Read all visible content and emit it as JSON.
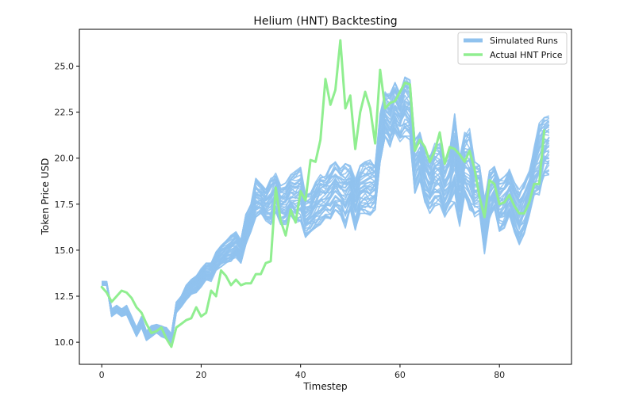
{
  "chart_data": {
    "type": "line",
    "title": "Helium (HNT) Backtesting",
    "xlabel": "Timestep",
    "ylabel": "Token Price USD",
    "xlim": [
      -4.5,
      94.5
    ],
    "ylim": [
      8.8,
      27.0
    ],
    "x_ticks": [
      0,
      20,
      40,
      60,
      80
    ],
    "y_ticks": [
      10.0,
      12.5,
      15.0,
      17.5,
      20.0,
      22.5,
      25.0
    ],
    "x_tick_labels": [
      "0",
      "20",
      "40",
      "60",
      "80"
    ],
    "y_tick_labels": [
      "10.0",
      "12.5",
      "15.0",
      "17.5",
      "20.0",
      "22.5",
      "25.0"
    ],
    "grid": false,
    "legend_position": "top-right",
    "legend": [
      "Simulated Runs",
      "Actual HNT Price"
    ],
    "colors": {
      "simulated": "#90c2ee",
      "actual": "#90ee90"
    },
    "simulated_run_count": 40,
    "simulated_envelope": {
      "x": [
        0,
        1,
        2,
        3,
        4,
        5,
        6,
        7,
        8,
        9,
        10,
        11,
        12,
        13,
        14,
        15,
        16,
        17,
        18,
        19,
        20,
        21,
        22,
        23,
        24,
        25,
        26,
        27,
        28,
        29,
        30,
        31,
        32,
        33,
        34,
        35,
        36,
        37,
        38,
        39,
        40,
        41,
        42,
        43,
        44,
        45,
        46,
        47,
        48,
        49,
        50,
        51,
        52,
        53,
        54,
        55,
        56,
        57,
        58,
        59,
        60,
        61,
        62,
        63,
        64,
        65,
        66,
        67,
        68,
        69,
        70,
        71,
        72,
        73,
        74,
        75,
        76,
        77,
        78,
        79,
        80,
        81,
        82,
        83,
        84,
        85,
        86,
        87,
        88,
        89,
        90
      ],
      "low": [
        13.1,
        13.1,
        11.4,
        11.6,
        11.4,
        11.5,
        10.9,
        10.3,
        10.8,
        10.1,
        10.3,
        10.5,
        10.3,
        10.2,
        9.95,
        11.6,
        11.9,
        12.3,
        12.6,
        12.7,
        13.0,
        13.4,
        13.3,
        13.9,
        14.1,
        14.3,
        14.4,
        14.6,
        14.3,
        15.3,
        16.0,
        16.8,
        17.0,
        16.6,
        16.4,
        17.1,
        16.4,
        16.4,
        16.9,
        16.5,
        16.6,
        15.7,
        16.0,
        16.2,
        16.4,
        16.7,
        16.7,
        17.2,
        16.9,
        16.2,
        17.2,
        16.1,
        17.0,
        17.0,
        16.9,
        17.2,
        19.8,
        21.2,
        20.6,
        21.4,
        20.9,
        21.2,
        21.0,
        18.1,
        18.8,
        17.6,
        17.0,
        17.4,
        17.5,
        16.8,
        17.2,
        17.6,
        16.3,
        17.8,
        17.2,
        16.7,
        17.0,
        14.8,
        16.7,
        17.2,
        16.0,
        16.2,
        16.9,
        16.0,
        15.3,
        15.9,
        16.8,
        18.0,
        18.0,
        19.0,
        19.1
      ],
      "high": [
        13.3,
        13.3,
        11.8,
        12.0,
        11.8,
        12.0,
        11.4,
        10.8,
        11.4,
        10.6,
        10.9,
        11.0,
        10.9,
        10.8,
        10.5,
        12.2,
        12.5,
        13.1,
        13.4,
        13.6,
        14.0,
        14.3,
        14.3,
        14.9,
        15.3,
        15.5,
        15.8,
        16.0,
        15.6,
        17.0,
        17.5,
        18.9,
        18.6,
        18.3,
        18.9,
        19.2,
        18.5,
        18.7,
        19.1,
        19.3,
        19.5,
        18.0,
        18.1,
        18.7,
        19.1,
        19.0,
        19.6,
        19.8,
        19.4,
        19.7,
        19.6,
        18.9,
        19.6,
        19.8,
        19.9,
        19.7,
        22.4,
        23.6,
        23.5,
        24.1,
        23.5,
        24.4,
        24.4,
        21.1,
        21.4,
        20.4,
        20.1,
        20.8,
        20.8,
        19.9,
        20.4,
        22.4,
        20.1,
        21.4,
        21.6,
        19.8,
        19.6,
        17.8,
        19.3,
        19.6,
        18.8,
        19.0,
        19.4,
        18.7,
        18.3,
        18.7,
        19.3,
        20.6,
        21.9,
        22.2,
        22.4
      ]
    },
    "series": [
      {
        "name": "Actual HNT Price",
        "x": [
          0,
          1,
          2,
          3,
          4,
          5,
          6,
          7,
          8,
          9,
          10,
          11,
          12,
          13,
          14,
          15,
          16,
          17,
          18,
          19,
          20,
          21,
          22,
          23,
          24,
          25,
          26,
          27,
          28,
          29,
          30,
          31,
          32,
          33,
          34,
          35,
          36,
          37,
          38,
          39,
          40,
          41,
          42,
          43,
          44,
          45,
          46,
          47,
          48,
          49,
          50,
          51,
          52,
          53,
          54,
          55,
          56,
          57,
          58,
          59,
          60,
          61,
          62,
          63,
          64,
          65,
          66,
          67,
          68,
          69,
          70,
          71,
          72,
          73,
          74,
          75,
          76,
          77,
          78,
          79,
          80,
          81,
          82,
          83,
          84,
          85,
          86,
          87,
          88,
          89
        ],
        "values": [
          13.0,
          12.7,
          12.2,
          12.5,
          12.8,
          12.7,
          12.4,
          11.9,
          11.6,
          11.0,
          10.5,
          10.6,
          10.8,
          10.2,
          9.75,
          10.8,
          11.0,
          11.2,
          11.3,
          11.9,
          11.4,
          11.6,
          12.8,
          12.5,
          13.9,
          13.6,
          13.1,
          13.4,
          13.1,
          13.2,
          13.2,
          13.7,
          13.7,
          14.3,
          14.4,
          18.4,
          16.6,
          15.8,
          17.2,
          16.5,
          18.2,
          17.7,
          19.9,
          19.8,
          21.0,
          24.3,
          22.9,
          23.7,
          26.4,
          22.7,
          23.4,
          20.5,
          22.5,
          23.6,
          22.7,
          20.8,
          24.8,
          22.7,
          23.0,
          23.1,
          23.6,
          24.1,
          24.0,
          20.4,
          21.0,
          20.6,
          19.8,
          20.4,
          21.4,
          19.7,
          20.6,
          20.5,
          20.2,
          19.8,
          20.4,
          19.4,
          17.9,
          16.8,
          18.8,
          18.6,
          17.5,
          17.6,
          18.0,
          17.4,
          17.0,
          17.0,
          17.6,
          18.6,
          18.6,
          21.5
        ]
      }
    ]
  }
}
